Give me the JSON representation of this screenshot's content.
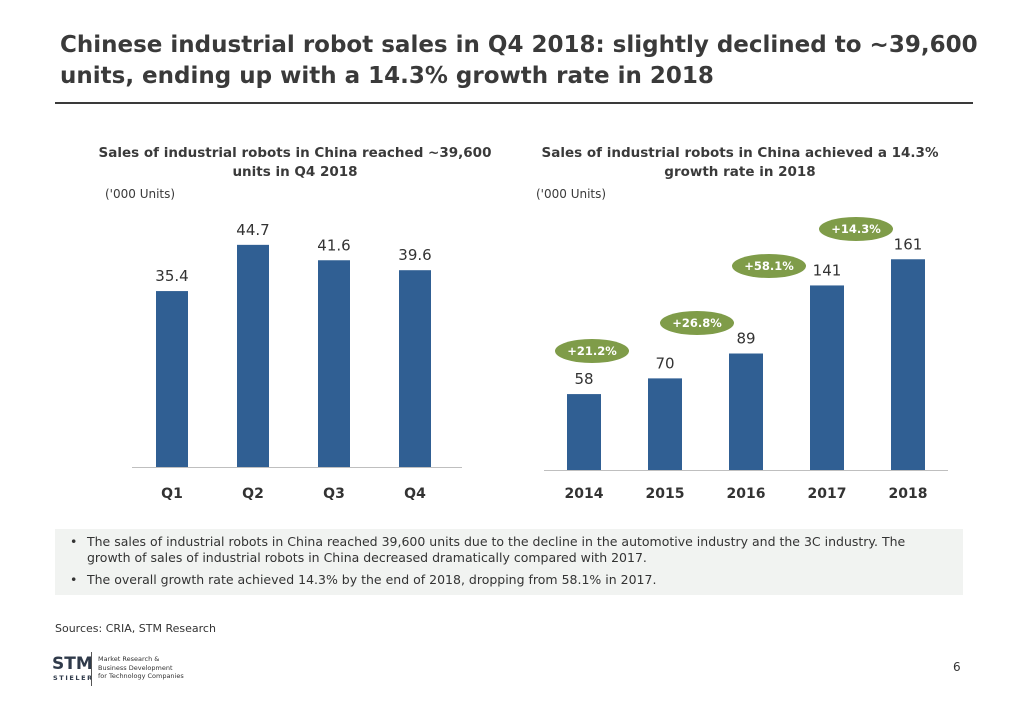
{
  "page": {
    "title": "Chinese industrial robot sales in Q4 2018: slightly declined to ~39,600 units, ending up with a 14.3% growth rate in 2018",
    "notes": [
      "The sales of industrial robots in China reached 39,600 units due to the decline in the automotive industry and the 3C industry. The growth of sales of industrial robots in China decreased dramatically compared with 2017.",
      "The overall growth rate achieved 14.3% by the end of 2018, dropping from 58.1% in 2017."
    ],
    "sources": "Sources: CRIA, STM Research",
    "logo": {
      "mark": "STM",
      "sub": "STIELER",
      "tagline": [
        "Market Research &",
        "Business Development",
        "for Technology Companies"
      ]
    },
    "page_number": "6"
  },
  "colors": {
    "bar": "#305f93",
    "growth_pill": "#7f9c49",
    "axis": "#bfbfbf"
  },
  "chart_data": [
    {
      "type": "bar",
      "title": "Sales of industrial robots in China reached ~39,600 units in Q4 2018",
      "units": "('000 Units)",
      "categories": [
        "Q1",
        "Q2",
        "Q3",
        "Q4"
      ],
      "values": [
        35.4,
        44.7,
        41.6,
        39.6
      ],
      "value_labels": [
        "35.4",
        "44.7",
        "41.6",
        "39.6"
      ],
      "ylim": [
        0,
        49.7
      ],
      "grid": false
    },
    {
      "type": "bar",
      "title": "Sales of industrial robots in China achieved a 14.3% growth rate in 2018",
      "units": "('000 Units)",
      "categories": [
        "2014",
        "2015",
        "2016",
        "2017",
        "2018"
      ],
      "values": [
        58,
        70,
        89,
        141,
        161
      ],
      "value_labels": [
        "58",
        "70",
        "89",
        "141",
        "161"
      ],
      "growth_labels": [
        "+21.2%",
        "+26.8%",
        "+58.1%",
        "+14.3%"
      ],
      "ylim": [
        0,
        191
      ],
      "grid": false
    }
  ]
}
